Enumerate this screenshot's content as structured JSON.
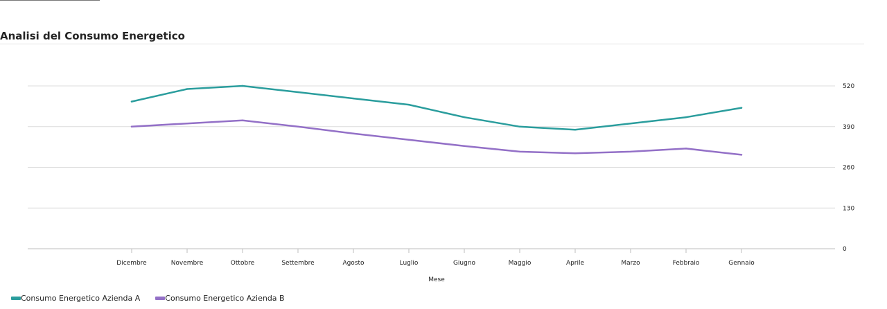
{
  "chart_data": {
    "type": "line",
    "title": "Analisi del Consumo Energetico",
    "xlabel": "Mese",
    "ylabel": "",
    "categories": [
      "Dicembre",
      "Novembre",
      "Ottobre",
      "Settembre",
      "Agosto",
      "Luglio",
      "Giugno",
      "Maggio",
      "Aprile",
      "Marzo",
      "Febbraio",
      "Gennaio"
    ],
    "yticks": [
      0,
      130,
      260,
      390,
      520
    ],
    "ylim": [
      0,
      520
    ],
    "y_axis_position": "right",
    "grid": true,
    "legend_position": "bottom-left",
    "series": [
      {
        "name": "Consumo Energetico Azienda A",
        "color": "#2a9d9d",
        "values": [
          470,
          510,
          520,
          500,
          480,
          460,
          420,
          390,
          380,
          400,
          420,
          450
        ]
      },
      {
        "name": "Consumo Energetico Azienda B",
        "color": "#9370c7",
        "values": [
          390,
          400,
          410,
          390,
          368,
          348,
          328,
          310,
          305,
          310,
          320,
          300
        ]
      }
    ]
  }
}
